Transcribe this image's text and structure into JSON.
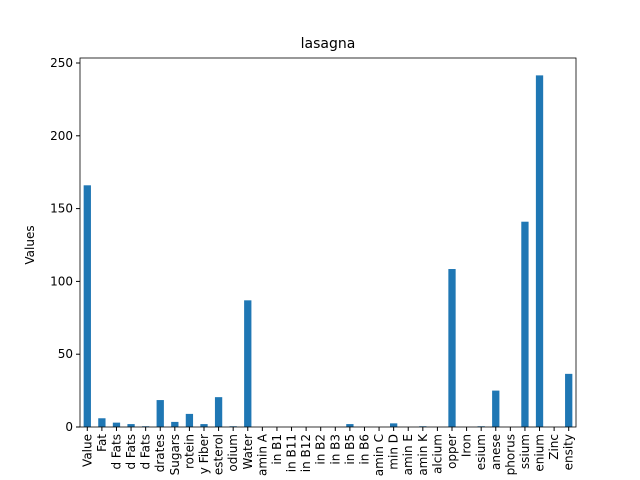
{
  "chart_data": {
    "type": "bar",
    "title": "lasagna",
    "y_label": "Values",
    "color": "#1f77b4",
    "categories": [
      "Value",
      "Fat",
      "d Fats",
      "d Fats",
      "d Fats",
      "drates",
      "Sugars",
      "rotein",
      "y Fiber",
      "esterol",
      "odium",
      "Water",
      "amin A",
      "in B1",
      "in B11",
      "in B12",
      "in B2",
      "in B3",
      "in B5",
      "in B6",
      "amin C",
      "min D",
      "amin E",
      "amin K",
      "alcium",
      "opper",
      "Iron",
      "esium",
      "anese",
      "phorus",
      "ssium",
      "enium",
      "Zinc",
      "ensity"
    ],
    "values": [
      166,
      6,
      3,
      2,
      0.5,
      18.5,
      3.5,
      9,
      2,
      20.5,
      0.5,
      87,
      0,
      0,
      0,
      0,
      0,
      0,
      2,
      0,
      0,
      2.5,
      0,
      0.5,
      0,
      108.5,
      0,
      0.5,
      25,
      0,
      141,
      241.5,
      0,
      36.5
    ],
    "ylim": [
      0,
      250
    ],
    "yticks": [
      0,
      50,
      100,
      150,
      200,
      250
    ]
  }
}
